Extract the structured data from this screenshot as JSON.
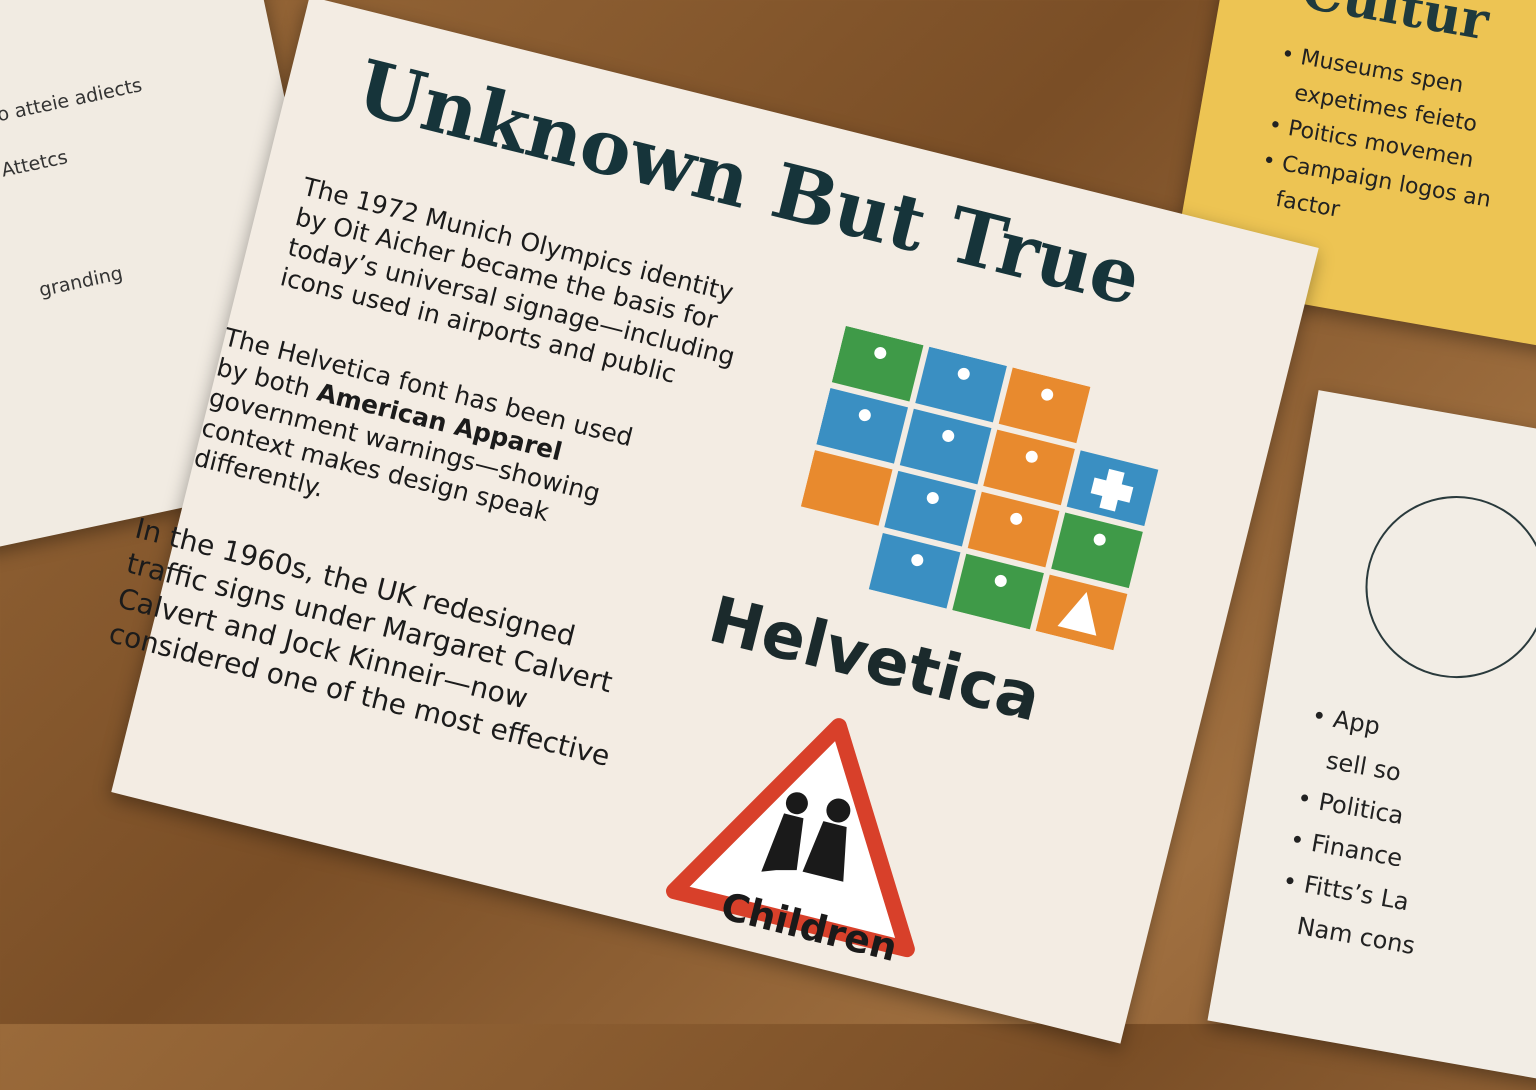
{
  "main": {
    "title": "Unknown But True",
    "paragraphs": [
      {
        "lines": [
          "The 1972 Munich Olympics identity",
          "by Oit Aicher became the basis for",
          "today’s universal signage—including",
          "icons used in airports and public"
        ]
      },
      {
        "lines": [
          "The Helvetica font has been used",
          "by both",
          "government warnings—showing",
          "context makes design speak",
          "differently."
        ],
        "bold": "American Apparel"
      },
      {
        "lines": [
          "In the 1960s, the UK redesigned",
          "traffic signs under Margaret Calvert",
          "Calvert and Jock Kinneir—now",
          "considered one of the most effective"
        ]
      }
    ],
    "font_label": "Helvetica",
    "sign_label": "Children"
  },
  "left_paper": {
    "lines": [
      "n to atteie adiects",
      "d Attetcs",
      "granding"
    ]
  },
  "top_right_paper": {
    "title": "Cultur",
    "lines": [
      "Museums spen",
      "expetimes feieto",
      "Poitics movemen",
      "Campaign logos an",
      "factor"
    ]
  },
  "bottom_right_paper": {
    "lines": [
      "App",
      "sell so",
      "Politica",
      "Finance",
      "Fitts’s La",
      "Nam cons"
    ]
  }
}
